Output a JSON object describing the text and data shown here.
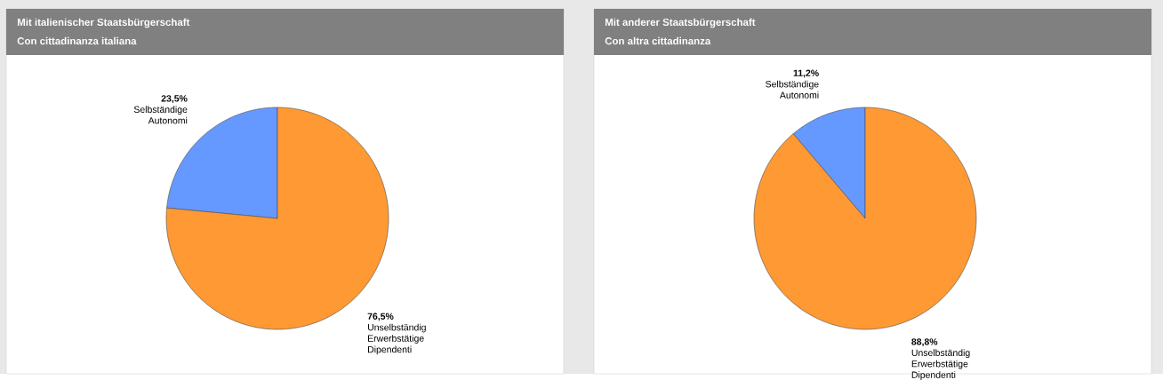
{
  "chart_data": [
    {
      "type": "pie",
      "title": "Mit italienischer Staatsbürgerschaft",
      "subtitle": "Con cittadinanza italiana",
      "categories": [
        "Selbständige Autonomi",
        "Unselbständig Erwerbstätige Dipendenti"
      ],
      "values": [
        23.5,
        76.5
      ],
      "value_labels": [
        "23,5%",
        "76,5%"
      ],
      "colors": [
        "#6699ff",
        "#ff9933"
      ]
    },
    {
      "type": "pie",
      "title": "Mit anderer Staatsbürgerschaft",
      "subtitle": "Con altra cittadinanza",
      "categories": [
        "Selbständige Autonomi",
        "Unselbständig Erwerbstätige Dipendenti"
      ],
      "values": [
        11.2,
        88.8
      ],
      "value_labels": [
        "11,2%",
        "88,8%"
      ],
      "colors": [
        "#6699ff",
        "#ff9933"
      ]
    }
  ]
}
